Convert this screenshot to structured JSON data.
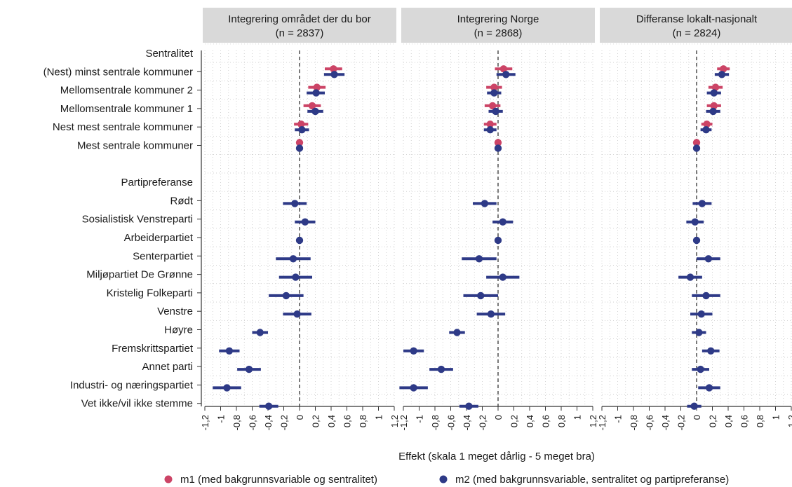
{
  "chart_data": {
    "type": "scatter",
    "xlabel": "Effekt (skala 1 meget dårlig - 5 meget bra)",
    "xlim": [
      -1.2,
      1.2
    ],
    "xticks": [
      -1.2,
      -1,
      -0.8,
      -0.6,
      -0.4,
      -0.2,
      0,
      0.2,
      0.4,
      0.6,
      0.8,
      1,
      1.2
    ],
    "xtick_labels": [
      "-1,2",
      "-1",
      "-0,8",
      "-0,6",
      "-0,4",
      "-0,2",
      "0",
      "0,2",
      "0,4",
      "0,6",
      "0,8",
      "1",
      "1,2"
    ],
    "grid": true,
    "legend_position": "bottom",
    "colors": {
      "m1": "#cc4466",
      "m2": "#2e3a87",
      "strip": "#d9d9d9"
    },
    "legend": [
      {
        "key": "m1",
        "label": "m1 (med bakgrunnsvariable og sentralitet)"
      },
      {
        "key": "m2",
        "label": "m2 (med bakgrunnsvariable, sentralitet og partipreferanse)"
      }
    ],
    "rows": [
      {
        "label": "Sentralitet",
        "is_header": true
      },
      {
        "label": "(Nest) minst sentrale kommuner"
      },
      {
        "label": "Mellomsentrale kommuner 2"
      },
      {
        "label": "Mellomsentrale kommuner 1"
      },
      {
        "label": "Nest mest sentrale kommuner"
      },
      {
        "label": "Mest sentrale kommuner"
      },
      {
        "label": "",
        "is_gap": true
      },
      {
        "label": "Partipreferanse",
        "is_header": true
      },
      {
        "label": "Rødt"
      },
      {
        "label": "Sosialistisk Venstreparti"
      },
      {
        "label": "Arbeiderpartiet"
      },
      {
        "label": "Senterpartiet"
      },
      {
        "label": "Miljøpartiet De Grønne"
      },
      {
        "label": "Kristelig Folkeparti"
      },
      {
        "label": "Venstre"
      },
      {
        "label": "Høyre"
      },
      {
        "label": "Fremskrittspartiet"
      },
      {
        "label": "Annet parti"
      },
      {
        "label": "Industri- og næringspartiet"
      },
      {
        "label": "Vet ikke/vil ikke stemme"
      }
    ],
    "panels": [
      {
        "title": "Integrering området der du bor",
        "subtitle": "(n = 2837)",
        "m1": [
          [
            0.43,
            0.32,
            0.54
          ],
          [
            0.22,
            0.11,
            0.33
          ],
          [
            0.16,
            0.05,
            0.27
          ],
          [
            0.02,
            -0.07,
            0.11
          ],
          [
            0.0,
            0.0,
            0.0
          ]
        ],
        "m2": [
          [
            0.44,
            0.31,
            0.57
          ],
          [
            0.21,
            0.09,
            0.32
          ],
          [
            0.2,
            0.1,
            0.3
          ],
          [
            0.03,
            -0.06,
            0.12
          ],
          [
            0.0,
            0.0,
            0.0
          ],
          [
            -0.06,
            -0.21,
            0.09
          ],
          [
            0.07,
            -0.06,
            0.2
          ],
          [
            0.0,
            0.0,
            0.0
          ],
          [
            -0.08,
            -0.3,
            0.14
          ],
          [
            -0.05,
            -0.26,
            0.16
          ],
          [
            -0.17,
            -0.39,
            0.05
          ],
          [
            -0.03,
            -0.21,
            0.15
          ],
          [
            -0.5,
            -0.6,
            -0.4
          ],
          [
            -0.89,
            -1.02,
            -0.76
          ],
          [
            -0.64,
            -0.79,
            -0.49
          ],
          [
            -0.92,
            -1.1,
            -0.74
          ],
          [
            -0.39,
            -0.51,
            -0.27
          ]
        ]
      },
      {
        "title": "Integrering Norge",
        "subtitle": "(n = 2868)",
        "m1": [
          [
            0.07,
            -0.04,
            0.18
          ],
          [
            -0.05,
            -0.15,
            0.05
          ],
          [
            -0.07,
            -0.17,
            0.03
          ],
          [
            -0.1,
            -0.18,
            -0.02
          ],
          [
            0.0,
            0.0,
            0.0
          ]
        ],
        "m2": [
          [
            0.1,
            -0.02,
            0.22
          ],
          [
            -0.05,
            -0.14,
            0.04
          ],
          [
            -0.03,
            -0.12,
            0.06
          ],
          [
            -0.1,
            -0.18,
            -0.02
          ],
          [
            0.0,
            0.0,
            0.0
          ],
          [
            -0.17,
            -0.32,
            -0.02
          ],
          [
            0.06,
            -0.07,
            0.19
          ],
          [
            0.0,
            0.0,
            0.0
          ],
          [
            -0.24,
            -0.46,
            -0.02
          ],
          [
            0.06,
            -0.15,
            0.27
          ],
          [
            -0.22,
            -0.44,
            0.0
          ],
          [
            -0.09,
            -0.27,
            0.09
          ],
          [
            -0.52,
            -0.62,
            -0.42
          ],
          [
            -1.07,
            -1.2,
            -0.94
          ],
          [
            -0.72,
            -0.87,
            -0.57
          ],
          [
            -1.07,
            -1.25,
            -0.89
          ],
          [
            -0.37,
            -0.49,
            -0.25
          ]
        ]
      },
      {
        "title": "Differanse lokalt-nasjonalt",
        "subtitle": "(n = 2824)",
        "m1": [
          [
            0.34,
            0.26,
            0.42
          ],
          [
            0.24,
            0.15,
            0.33
          ],
          [
            0.22,
            0.13,
            0.31
          ],
          [
            0.13,
            0.06,
            0.2
          ],
          [
            0.0,
            0.0,
            0.0
          ]
        ],
        "m2": [
          [
            0.32,
            0.23,
            0.41
          ],
          [
            0.22,
            0.13,
            0.31
          ],
          [
            0.21,
            0.12,
            0.3
          ],
          [
            0.12,
            0.05,
            0.19
          ],
          [
            0.0,
            0.0,
            0.0
          ],
          [
            0.07,
            -0.05,
            0.19
          ],
          [
            -0.02,
            -0.13,
            0.09
          ],
          [
            0.0,
            0.0,
            0.0
          ],
          [
            0.15,
            0.0,
            0.3
          ],
          [
            -0.08,
            -0.23,
            0.07
          ],
          [
            0.12,
            -0.06,
            0.3
          ],
          [
            0.06,
            -0.08,
            0.2
          ],
          [
            0.03,
            -0.06,
            0.12
          ],
          [
            0.18,
            0.07,
            0.29
          ],
          [
            0.05,
            -0.06,
            0.16
          ],
          [
            0.16,
            0.02,
            0.3
          ],
          [
            -0.03,
            -0.12,
            0.06
          ]
        ]
      }
    ]
  }
}
